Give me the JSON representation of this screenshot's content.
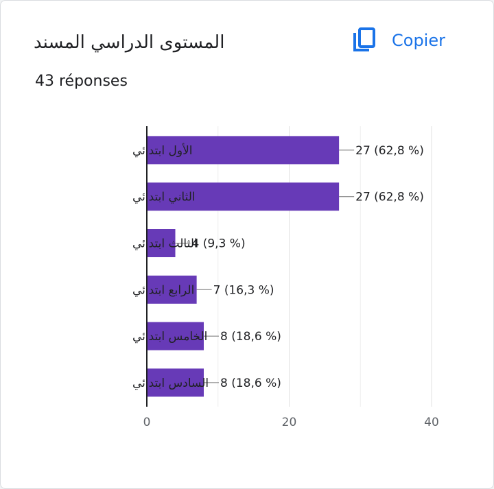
{
  "card": {
    "title": "المستوى الدراسي المسند",
    "responses": "43 réponses",
    "copy_label": "Copier",
    "copy_icon": "copy-icon"
  },
  "colors": {
    "bar": "#673ab7",
    "accent": "#1a73e8",
    "grid": "#e0e0e0",
    "axis": "#202124"
  },
  "chart_data": {
    "type": "bar",
    "orientation": "horizontal",
    "categories": [
      "الأول ابتدائي",
      "الثاني ابتدائي",
      "الثالث ابتدائي",
      "الرابع ابتدائي",
      "الخامس ابتدائي",
      "السادس ابتدائي"
    ],
    "values": [
      27,
      27,
      4,
      7,
      8,
      8
    ],
    "value_labels": [
      "27 (62,8 %)",
      "27 (62,8 %)",
      "4 (9,3 %)",
      "7 (16,3 %)",
      "8 (18,6 %)",
      "8 (18,6 %)"
    ],
    "xlim": [
      0,
      40
    ],
    "xticks": [
      "0",
      "20",
      "40"
    ],
    "grid": true
  }
}
